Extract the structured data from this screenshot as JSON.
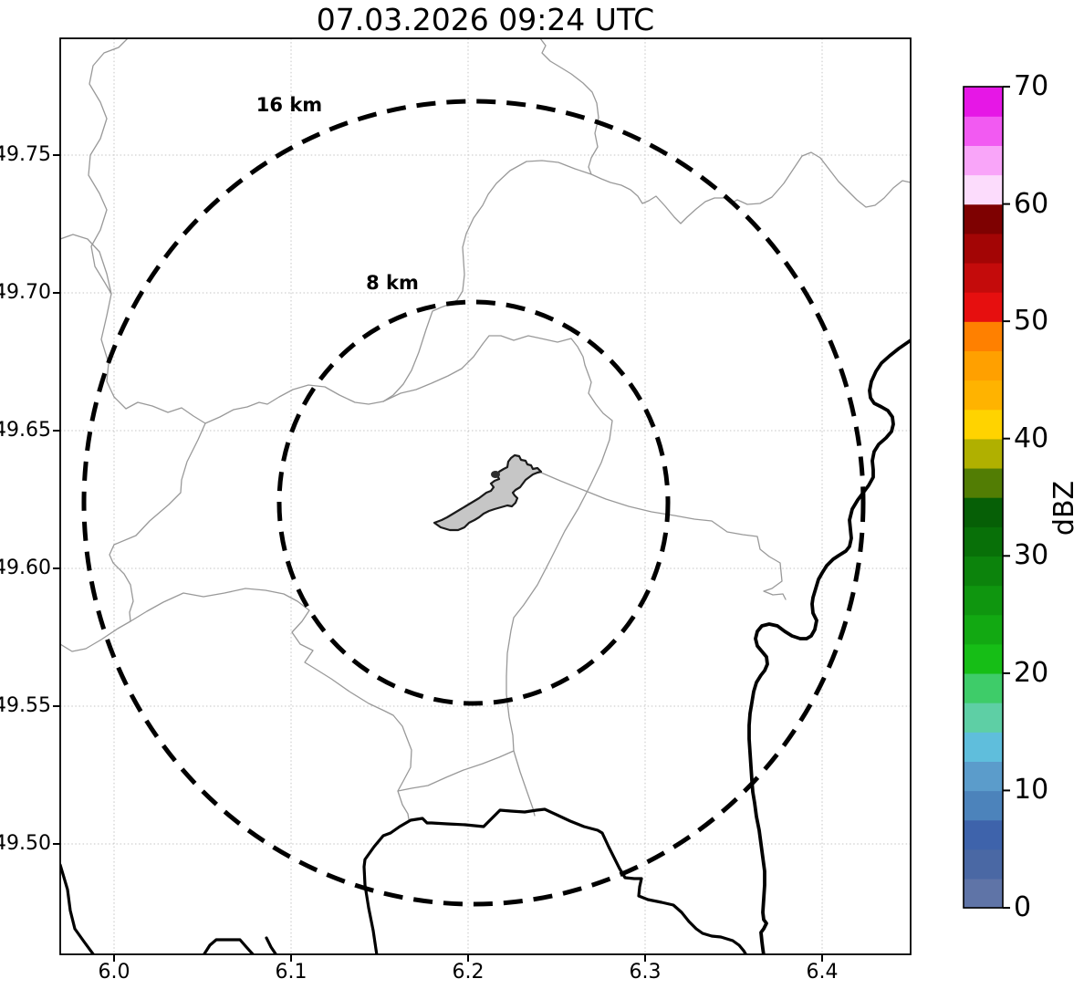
{
  "title": "07.03.2026 09:24 UTC",
  "map": {
    "range_rings": [
      {
        "label": "16 km",
        "radius_km": 16
      },
      {
        "label": "8 km",
        "radius_km": 8
      }
    ],
    "x_axis": {
      "ticks": [
        "6.0",
        "6.1",
        "6.2",
        "6.3",
        "6.4"
      ]
    },
    "y_axis": {
      "ticks": [
        "49.75",
        "49.70",
        "49.65",
        "49.60",
        "49.55",
        "49.50"
      ]
    },
    "features": {
      "city_area_fill": "#C6C6C6",
      "city_area_outline": "#1A1A1A",
      "admin_border_color": "#999999",
      "country_border_color": "#000000",
      "gridline_color": "#C4C4C4",
      "range_ring_color": "#000000"
    }
  },
  "colorbar": {
    "label": "dBZ",
    "ticks": [
      "0",
      "10",
      "20",
      "30",
      "40",
      "50",
      "60",
      "70"
    ],
    "range": [
      0,
      70
    ],
    "step": 2.5,
    "colors_bottom_to_top": [
      "#5F74A7",
      "#4A68A4",
      "#3E63AB",
      "#4C83BB",
      "#5B9CCB",
      "#5FBEDC",
      "#5ECFA5",
      "#3ECC69",
      "#16BE16",
      "#12A912",
      "#0F960F",
      "#0C830C",
      "#087008",
      "#065F06",
      "#527D04",
      "#B0B000",
      "#FFD300",
      "#FFB300",
      "#FFA000",
      "#FF8000",
      "#E60F0F",
      "#C40B0B",
      "#A30505",
      "#7E0101",
      "#FCDCFC",
      "#F9A5F9",
      "#F25AF2",
      "#E617E6"
    ]
  }
}
